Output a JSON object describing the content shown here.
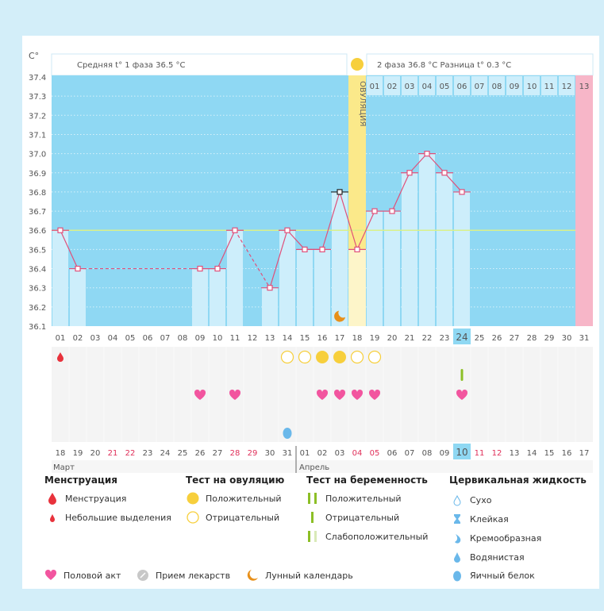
{
  "header": {
    "unit": "C°",
    "phase1_label": "Средняя t° 1 фаза",
    "phase1_value": "36.5 °C",
    "phase2_label": "2 фаза",
    "phase2_value": "36.8 °C",
    "diff_label": "Разница t°",
    "diff_value": "0.3 °C",
    "ovulation_label": "ОВУЛЯЦИЯ"
  },
  "chart_data": {
    "type": "line",
    "ylabel": "C°",
    "ylim": [
      36.1,
      37.4
    ],
    "yticks": [
      "37.4",
      "37.3",
      "37.2",
      "37.1",
      "37.0",
      "36.9",
      "36.8",
      "36.7",
      "36.6",
      "36.5",
      "36.4",
      "36.3",
      "36.2",
      "36.1"
    ],
    "cycle_days": [
      "01",
      "02",
      "03",
      "04",
      "05",
      "06",
      "07",
      "08",
      "09",
      "10",
      "11",
      "12",
      "13",
      "14",
      "15",
      "16",
      "17",
      "18",
      "19",
      "20",
      "21",
      "22",
      "23",
      "24",
      "25",
      "26",
      "27",
      "28",
      "29",
      "30",
      "31"
    ],
    "temperatures": [
      36.6,
      36.4,
      null,
      null,
      null,
      null,
      null,
      null,
      36.4,
      36.4,
      36.6,
      null,
      36.3,
      36.6,
      36.5,
      36.5,
      36.8,
      36.5,
      36.7,
      36.7,
      36.9,
      37.0,
      36.9,
      36.8,
      null,
      null,
      null,
      null,
      null,
      null,
      null
    ],
    "excluded_day": 17,
    "coverline": 36.6,
    "ovulation_day": 18,
    "phase2_days": [
      "01",
      "02",
      "03",
      "04",
      "05",
      "06",
      "07",
      "08",
      "09",
      "10",
      "11",
      "12",
      "13"
    ],
    "next_cycle_day": 31,
    "today_day": 24,
    "moon_day": 17,
    "calendar_dates": [
      "18",
      "19",
      "20",
      "21",
      "22",
      "23",
      "24",
      "25",
      "26",
      "27",
      "28",
      "29",
      "30",
      "31",
      "01",
      "02",
      "03",
      "04",
      "05",
      "06",
      "07",
      "08",
      "09",
      "10",
      "11",
      "12",
      "13",
      "14",
      "15",
      "16",
      "17"
    ],
    "weekend_dates_index": [
      3,
      4,
      10,
      11,
      17,
      18,
      24,
      25
    ],
    "months": [
      "Март",
      "Апрель"
    ],
    "month_break_index": 14,
    "events": {
      "menstruation_light": [
        1
      ],
      "ovulation_test_positive": [
        16,
        17
      ],
      "ovulation_test_negative": [
        14,
        15,
        18,
        19
      ],
      "pregnancy_test_negative": [
        24
      ],
      "intercourse": [
        9,
        11,
        16,
        17,
        18,
        19,
        24
      ],
      "cervical_egg_white": [
        14
      ]
    },
    "colors": {
      "plot_bg": "#8fd8f3",
      "bar": "#cdeefb",
      "line": "#e0507a",
      "coverline": "#d9f08a",
      "ovulation": "#fbe98a",
      "next_cycle": "#f7b6c8",
      "heart": "#f2559f",
      "ovu_test": "#f7cf3c",
      "preg_test": "#8cbf26",
      "menstruation": "#e8323c",
      "cervical": "#6ab8ea",
      "moon": "#e8901a",
      "weekend": "#e0305a"
    }
  },
  "legend": {
    "menstruation": {
      "title": "Менструация",
      "items": [
        "Менструация",
        "Небольшие выделения"
      ]
    },
    "ovulation_test": {
      "title": "Тест на овуляцию",
      "items": [
        "Положительный",
        "Отрицательный"
      ]
    },
    "pregnancy_test": {
      "title": "Тест на беременность",
      "items": [
        "Положительный",
        "Отрицательный",
        "Слабоположительный"
      ]
    },
    "cervical": {
      "title": "Цервикальная жидкость",
      "items": [
        "Сухо",
        "Клейкая",
        "Кремообразная",
        "Водянистая",
        "Яичный белок"
      ]
    },
    "other": [
      "Половой акт",
      "Прием лекарств",
      "Лунный календарь"
    ]
  }
}
